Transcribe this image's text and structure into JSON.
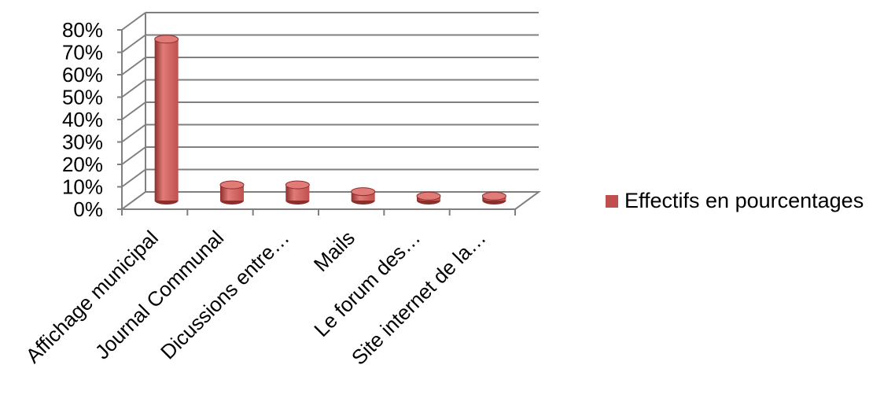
{
  "chart_data": {
    "type": "bar",
    "categories": [
      "Affichage municipal",
      "Journal Communal",
      "Dicussions entre…",
      "Mails",
      "Le forum des…",
      "Site internet de la…"
    ],
    "series": [
      {
        "name": "Effectifs en pourcentages",
        "values": [
          72,
          7,
          7,
          4,
          2,
          2
        ]
      }
    ],
    "y_ticks": [
      "0%",
      "10%",
      "20%",
      "30%",
      "40%",
      "50%",
      "60%",
      "70%",
      "80%"
    ],
    "ylim": [
      0,
      80
    ],
    "grid": true,
    "legend_position": "right",
    "colors": {
      "bar": "#c0504d",
      "bar_dark": "#8c2e2c",
      "bar_light": "#e07b78",
      "grid": "#7f7f7f"
    }
  }
}
